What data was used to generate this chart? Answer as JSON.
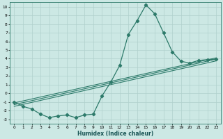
{
  "xlabel": "Humidex (Indice chaleur)",
  "bg_color": "#cce8e4",
  "grid_color": "#b0d0cc",
  "line_color": "#2d7a6a",
  "xlim": [
    -0.5,
    23.5
  ],
  "ylim": [
    -3.5,
    10.5
  ],
  "xticks": [
    0,
    1,
    2,
    3,
    4,
    5,
    6,
    7,
    8,
    9,
    10,
    11,
    12,
    13,
    14,
    15,
    16,
    17,
    18,
    19,
    20,
    21,
    22,
    23
  ],
  "yticks": [
    -3,
    -2,
    -1,
    0,
    1,
    2,
    3,
    4,
    5,
    6,
    7,
    8,
    9,
    10
  ],
  "main_x": [
    0,
    1,
    2,
    3,
    4,
    5,
    6,
    7,
    8,
    9,
    10,
    11,
    12,
    13,
    14,
    15,
    16,
    17,
    18,
    19,
    20,
    21,
    22,
    23
  ],
  "main_y": [
    -1.0,
    -1.5,
    -1.8,
    -2.4,
    -2.8,
    -2.6,
    -2.5,
    -2.8,
    -2.5,
    -2.4,
    -0.3,
    1.3,
    3.2,
    6.8,
    8.4,
    10.2,
    9.2,
    7.0,
    4.8,
    3.7,
    3.5,
    3.8,
    3.9,
    3.95
  ],
  "trend1_x": [
    0,
    23
  ],
  "trend1_y": [
    -1.3,
    3.95
  ],
  "trend2_x": [
    0,
    23
  ],
  "trend2_y": [
    -1.1,
    4.1
  ],
  "trend3_x": [
    0,
    23
  ],
  "trend3_y": [
    -1.5,
    3.75
  ],
  "marker": "D",
  "markersize": 2.2,
  "linewidth": 0.9,
  "trend_linewidth": 0.8,
  "tick_fontsize": 4.2,
  "xlabel_fontsize": 5.5
}
